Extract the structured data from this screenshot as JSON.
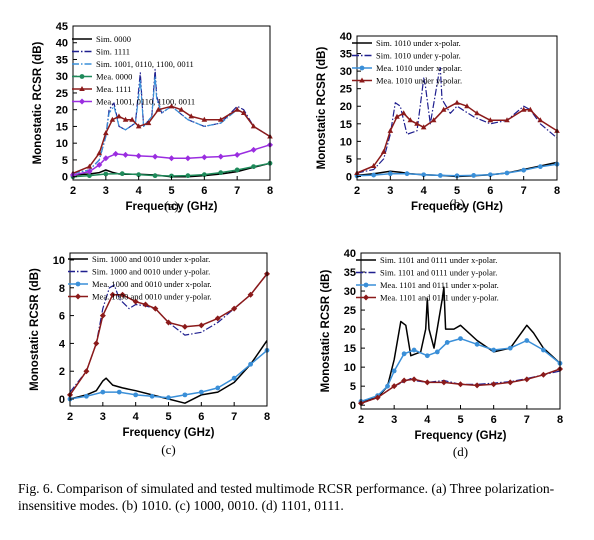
{
  "figure": {
    "caption": "Fig. 6.   Comparison of simulated and tested multimode RCSR performance. (a) Three polarization-insensitive modes. (b) 1010. (c) 1000, 0010. (d) 1101, 0111."
  },
  "chart_data": [
    {
      "panel": "(a)",
      "type": "line",
      "xlabel": "Frequency (GHz)",
      "ylabel": "Monostatic RCSR (dB)",
      "xlim": [
        2,
        8
      ],
      "ylim": [
        -1,
        45
      ],
      "xticks": [
        2,
        3,
        4,
        5,
        6,
        7,
        8
      ],
      "yticks": [
        0,
        5,
        10,
        15,
        20,
        25,
        30,
        35,
        40,
        45
      ],
      "legend_position": "top-left",
      "series": [
        {
          "name": "Sim. 0000",
          "color": "#000000",
          "style": "solid",
          "marker": "none",
          "x": [
            2,
            2.5,
            2.8,
            3,
            3.2,
            3.4,
            3.6,
            4,
            4.5,
            5,
            5.5,
            6,
            6.5,
            7,
            7.5,
            8
          ],
          "y": [
            0.5,
            0.8,
            1.2,
            2,
            1.3,
            0.8,
            0.7,
            0.7,
            0.5,
            0,
            0,
            0.3,
            0.8,
            1.5,
            2.8,
            4
          ]
        },
        {
          "name": "Sim. 1111",
          "color": "#1f1f8f",
          "style": "dashdot",
          "marker": "none",
          "x": [
            2,
            2.5,
            2.8,
            3,
            3.1,
            3.25,
            3.4,
            3.6,
            3.9,
            4,
            4.05,
            4.15,
            4.4,
            4.5,
            4.55,
            4.7,
            5,
            5.5,
            6,
            6.5,
            7,
            7.2,
            7.5,
            8
          ],
          "y": [
            1,
            2,
            5,
            12,
            20,
            22,
            15,
            14,
            16,
            26,
            31,
            15,
            18,
            32,
            24,
            19,
            21,
            17,
            15,
            16,
            21,
            20,
            15,
            12
          ]
        },
        {
          "name": "Sim. 1001, 0110, 1100, 0011",
          "color": "#3a8fd8",
          "style": "dashdot",
          "marker": "none",
          "x": [
            2,
            2.5,
            2.8,
            3,
            3.1,
            3.25,
            3.4,
            3.6,
            3.9,
            4,
            4.05,
            4.15,
            4.4,
            4.5,
            4.55,
            4.7,
            5,
            5.5,
            6,
            6.5,
            7,
            7.2,
            7.5,
            8
          ],
          "y": [
            1,
            2,
            5,
            12,
            19,
            21,
            15,
            14,
            16,
            24,
            29,
            15,
            18,
            30,
            23,
            19,
            21,
            17,
            15,
            16,
            20,
            19,
            15,
            12
          ]
        },
        {
          "name": "Mea. 0000",
          "color": "#1e8a5a",
          "style": "solid",
          "marker": "circle",
          "x": [
            2,
            2.5,
            3,
            3.5,
            4,
            4.5,
            5,
            5.5,
            6,
            6.5,
            7,
            7.5,
            8
          ],
          "y": [
            0,
            0.3,
            0.8,
            0.9,
            0.6,
            0.3,
            0.2,
            0.3,
            0.6,
            1.2,
            2,
            3,
            4
          ]
        },
        {
          "name": "Mea. 1111",
          "color": "#8b1a1a",
          "style": "solid",
          "marker": "triangle",
          "x": [
            2,
            2.5,
            2.8,
            3,
            3.2,
            3.4,
            3.6,
            3.8,
            4,
            4.3,
            4.6,
            5,
            5.3,
            5.6,
            6,
            6.5,
            7,
            7.2,
            7.5,
            8
          ],
          "y": [
            1,
            3,
            7,
            13,
            17,
            18,
            17,
            17,
            15,
            16,
            20,
            21,
            20,
            18,
            17,
            17,
            20,
            19,
            15,
            12
          ]
        },
        {
          "name": "Mea. 1001, 0110, 1100, 0011",
          "color": "#9a2de0",
          "style": "solid",
          "marker": "diamond",
          "x": [
            2,
            2.5,
            2.8,
            3,
            3.3,
            3.6,
            4,
            4.5,
            5,
            5.5,
            6,
            6.5,
            7,
            7.5,
            8
          ],
          "y": [
            0.5,
            1.5,
            3.5,
            5.5,
            6.8,
            6.5,
            6.2,
            6,
            5.5,
            5.5,
            5.8,
            6,
            6.5,
            8,
            9.5
          ]
        }
      ]
    },
    {
      "panel": "(b)",
      "type": "line",
      "xlabel": "Frequency (GHz)",
      "ylabel": "Monostatic RCSR (dB)",
      "xlim": [
        2,
        8
      ],
      "ylim": [
        -1,
        40
      ],
      "xticks": [
        2,
        3,
        4,
        5,
        6,
        7,
        8
      ],
      "yticks": [
        0,
        5,
        10,
        15,
        20,
        25,
        30,
        35,
        40
      ],
      "legend_position": "top-left",
      "series": [
        {
          "name": "Sim. 1010 under x-polar.",
          "color": "#000000",
          "style": "solid",
          "marker": "none",
          "x": [
            2,
            2.5,
            3,
            3.3,
            3.6,
            4,
            4.5,
            5,
            5.5,
            6,
            6.5,
            7,
            7.5,
            8
          ],
          "y": [
            0.3,
            0.8,
            1.5,
            1.2,
            0.8,
            0.5,
            0.3,
            0,
            0.2,
            0.5,
            1,
            2,
            3,
            4
          ]
        },
        {
          "name": "Sim. 1010 under y-polar.",
          "color": "#1f1f8f",
          "style": "dashdot",
          "marker": "none",
          "x": [
            2,
            2.5,
            2.8,
            3,
            3.15,
            3.3,
            3.5,
            3.8,
            3.95,
            4,
            4.05,
            4.2,
            4.45,
            4.5,
            4.55,
            4.8,
            5,
            5.5,
            6,
            6.5,
            7,
            7.2,
            7.5,
            8
          ],
          "y": [
            1,
            2,
            5,
            12,
            21,
            20,
            12,
            13,
            24,
            28,
            26,
            15,
            29,
            31,
            22,
            18,
            20,
            17,
            15,
            16,
            20,
            19,
            15,
            11
          ]
        },
        {
          "name": "Mea. 1010 under x-polar.",
          "color": "#3a8fd8",
          "style": "solid",
          "marker": "circle",
          "x": [
            2,
            2.5,
            3,
            3.5,
            4,
            4.5,
            5,
            5.5,
            6,
            6.5,
            7,
            7.5,
            8
          ],
          "y": [
            0.2,
            0.4,
            0.8,
            0.8,
            0.5,
            0.3,
            0.2,
            0.3,
            0.5,
            1,
            1.8,
            2.8,
            3.5
          ]
        },
        {
          "name": "Mea. 1010 under y-polar.",
          "color": "#8b1a1a",
          "style": "solid",
          "marker": "triangle",
          "x": [
            2,
            2.5,
            2.8,
            3,
            3.2,
            3.4,
            3.6,
            3.8,
            4,
            4.3,
            4.6,
            5,
            5.3,
            5.6,
            6,
            6.5,
            7,
            7.2,
            7.5,
            8
          ],
          "y": [
            1,
            3,
            7,
            13,
            17,
            18,
            16,
            15,
            14,
            16,
            19,
            21,
            20,
            18,
            16,
            16,
            19,
            19,
            16,
            13
          ]
        }
      ]
    },
    {
      "panel": "(c)",
      "type": "line",
      "xlabel": "Frequency (GHz)",
      "ylabel": "Monostatic RCSR (dB)",
      "xlim": [
        2,
        8
      ],
      "ylim": [
        -0.5,
        10.5
      ],
      "xticks": [
        2,
        3,
        4,
        5,
        6,
        7,
        8
      ],
      "yticks": [
        0,
        2,
        4,
        6,
        8,
        10
      ],
      "legend_position": "top-left",
      "series": [
        {
          "name": "Sim. 1000 and 0010 under x-polar.",
          "color": "#000000",
          "style": "solid",
          "marker": "none",
          "x": [
            2,
            2.5,
            2.8,
            3,
            3.1,
            3.3,
            3.6,
            4,
            4.5,
            5,
            5.5,
            6,
            6.5,
            7,
            7.5,
            8
          ],
          "y": [
            0,
            0.3,
            0.6,
            1.3,
            1.5,
            1.0,
            0.8,
            0.6,
            0.3,
            0,
            -0.3,
            0.3,
            0.5,
            1.2,
            2.5,
            4.2
          ]
        },
        {
          "name": "Sim. 1000 and 0010 under y-polar.",
          "color": "#1f1f8f",
          "style": "dashdot",
          "marker": "none",
          "x": [
            2,
            2.5,
            2.8,
            3,
            3.2,
            3.35,
            3.5,
            3.8,
            4,
            4.3,
            4.6,
            5,
            5.5,
            6,
            6.5,
            7,
            7.5,
            8
          ],
          "y": [
            0.5,
            2,
            4,
            6.5,
            8,
            8.2,
            7.2,
            6.5,
            6.8,
            6.7,
            6.5,
            5.5,
            4.6,
            4.8,
            5.5,
            6.5,
            7.5,
            9
          ]
        },
        {
          "name": "Mea. 1000 and 0010 under x-polar.",
          "color": "#3a8fd8",
          "style": "solid",
          "marker": "circle",
          "x": [
            2,
            2.5,
            3,
            3.5,
            4,
            4.5,
            5,
            5.5,
            6,
            6.5,
            7,
            7.5,
            8
          ],
          "y": [
            0,
            0.2,
            0.5,
            0.5,
            0.3,
            0.2,
            0.1,
            0.3,
            0.5,
            0.8,
            1.5,
            2.5,
            3.5
          ]
        },
        {
          "name": "Mea. 1000 and 0010 under y-polar.",
          "color": "#8b1a1a",
          "style": "solid",
          "marker": "diamond",
          "x": [
            2,
            2.5,
            2.8,
            3,
            3.3,
            3.6,
            4,
            4.3,
            4.6,
            5,
            5.5,
            6,
            6.5,
            7,
            7.5,
            8
          ],
          "y": [
            0.3,
            2,
            4,
            6,
            7.5,
            7.5,
            7,
            6.8,
            6.5,
            5.5,
            5.2,
            5.3,
            5.8,
            6.5,
            7.5,
            9
          ]
        }
      ]
    },
    {
      "panel": "(d)",
      "type": "line",
      "xlabel": "Frequency (GHz)",
      "ylabel": "Monostatic RCSR (dB)",
      "xlim": [
        2,
        8
      ],
      "ylim": [
        -1,
        40
      ],
      "xticks": [
        2,
        3,
        4,
        5,
        6,
        7,
        8
      ],
      "yticks": [
        0,
        5,
        10,
        15,
        20,
        25,
        30,
        35,
        40
      ],
      "legend_position": "top-left",
      "series": [
        {
          "name": "Sim. 1101 and 0111 under x-polar.",
          "color": "#000000",
          "style": "solid",
          "marker": "none",
          "x": [
            2,
            2.5,
            2.8,
            3,
            3.2,
            3.35,
            3.5,
            3.8,
            3.95,
            4.0,
            4.05,
            4.2,
            4.45,
            4.5,
            4.55,
            4.8,
            5,
            5.5,
            6,
            6.5,
            7,
            7.2,
            7.5,
            8
          ],
          "y": [
            1,
            2,
            5,
            12,
            22,
            21,
            13,
            14,
            20,
            28,
            20,
            15,
            28,
            31,
            20,
            20,
            21,
            17,
            14,
            15,
            21,
            19,
            15,
            11
          ]
        },
        {
          "name": "Sim. 1101 and 0111 under y-polar.",
          "color": "#1f1f8f",
          "style": "dashdot",
          "marker": "none",
          "x": [
            2,
            2.5,
            3,
            3.5,
            3.6,
            4,
            4.5,
            5,
            5.5,
            6,
            6.5,
            7,
            7.5,
            8
          ],
          "y": [
            0.5,
            2,
            5,
            7,
            6.5,
            6,
            6.5,
            5.5,
            5.5,
            5.8,
            6.2,
            7,
            8,
            9
          ]
        },
        {
          "name": "Mea. 1101 and 0111 under x-polar.",
          "color": "#3a8fd8",
          "style": "solid",
          "marker": "circle",
          "x": [
            2,
            2.5,
            2.8,
            3,
            3.3,
            3.6,
            4,
            4.3,
            4.6,
            5,
            5.5,
            6,
            6.5,
            7,
            7.5,
            8
          ],
          "y": [
            1,
            2.5,
            5,
            9,
            13.5,
            14.5,
            13,
            14,
            16.5,
            17.5,
            16,
            14.5,
            15,
            17,
            14.5,
            11
          ]
        },
        {
          "name": "Mea. 1101 and 0111 under y-polar.",
          "color": "#8b1a1a",
          "style": "solid",
          "marker": "diamond",
          "x": [
            2,
            2.5,
            3,
            3.3,
            3.6,
            4,
            4.5,
            5,
            5.5,
            6,
            6.5,
            7,
            7.5,
            8
          ],
          "y": [
            0.5,
            2,
            5,
            6.5,
            6.8,
            6,
            6,
            5.5,
            5.2,
            5.5,
            6,
            6.8,
            8,
            9.5
          ]
        }
      ]
    }
  ]
}
